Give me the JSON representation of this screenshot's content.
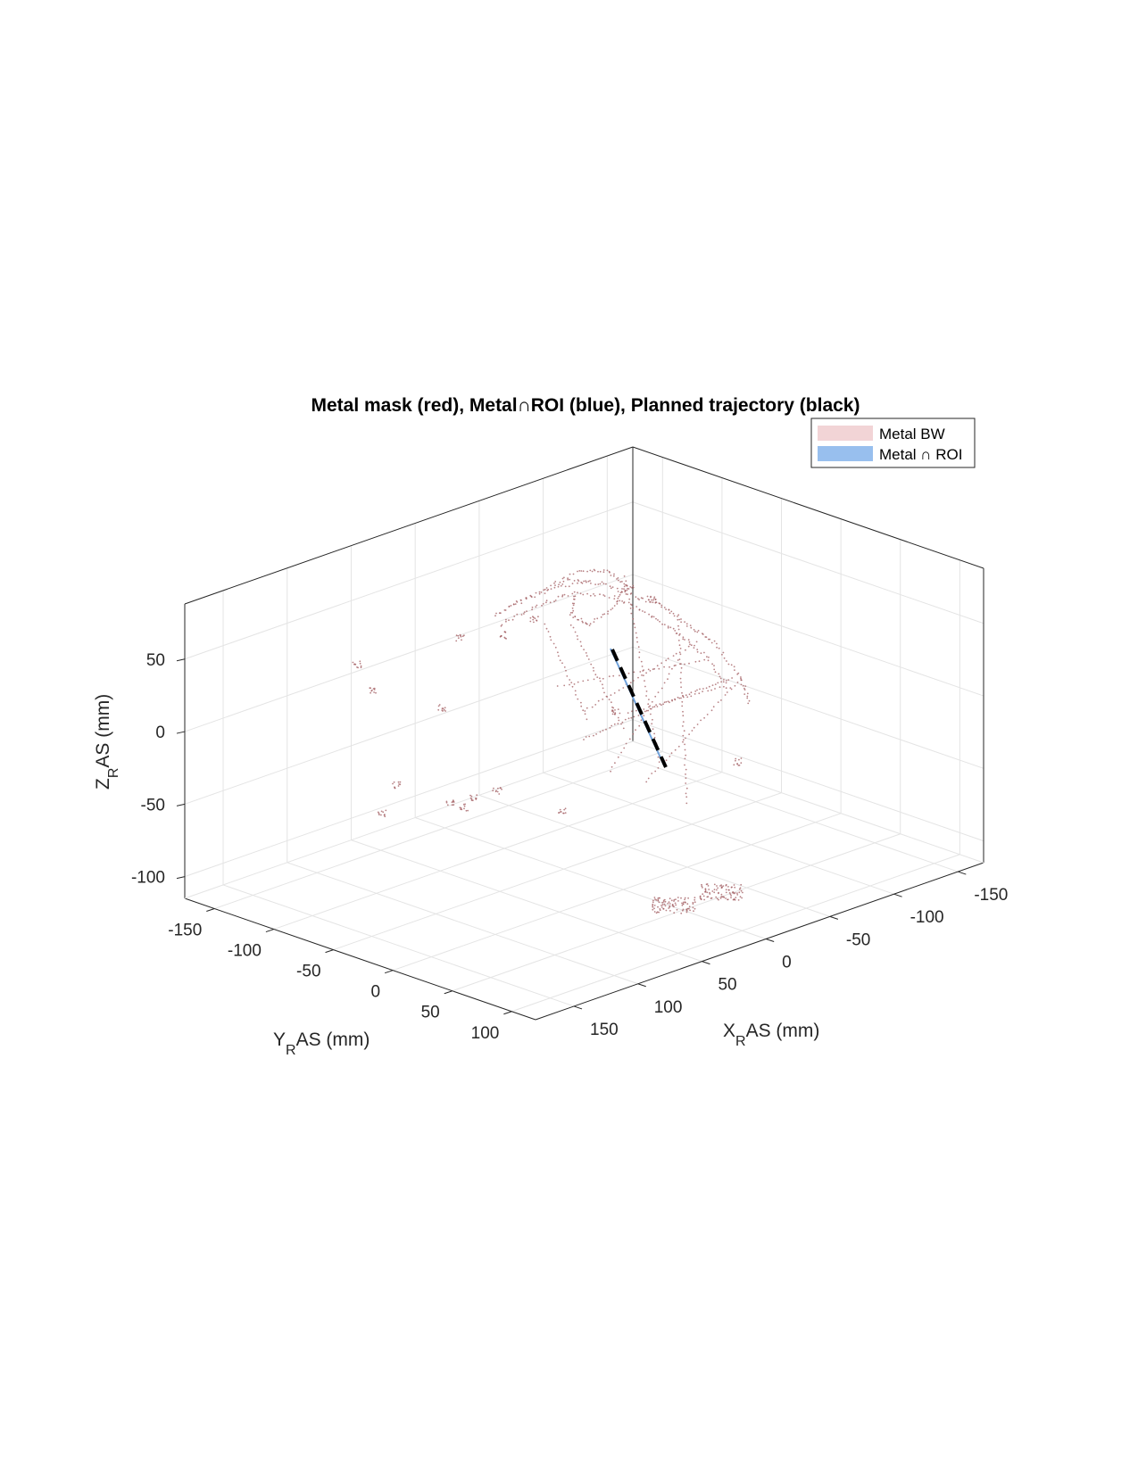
{
  "chart_data": {
    "type": "scatter3d",
    "title": "Metal mask (red), Metal∩ROI (blue), Planned trajectory (black)",
    "axes": {
      "x": {
        "label_main": "X",
        "label_sub": "R",
        "label_rest": "AS (mm)",
        "ticks": [
          150,
          100,
          50,
          0,
          -50,
          -100,
          -150
        ],
        "lim": [
          -170,
          180
        ]
      },
      "y": {
        "label_main": "Y",
        "label_sub": "R",
        "label_rest": "AS (mm)",
        "ticks": [
          -150,
          -100,
          -50,
          0,
          50,
          100
        ],
        "lim": [
          -175,
          120
        ]
      },
      "z": {
        "label_main": "Z",
        "label_sub": "R",
        "label_rest": "AS (mm)",
        "ticks": [
          50,
          0,
          -50,
          -100
        ],
        "lim": [
          -115,
          80
        ]
      }
    },
    "grid": true,
    "legend": {
      "placement": "top-right",
      "entries": [
        {
          "label": "Metal BW",
          "color": "#f2d4d6"
        },
        {
          "label": "Metal ∩ ROI",
          "color": "#98bfee"
        }
      ]
    },
    "series": [
      {
        "name": "Metal BW",
        "color": "#a05a5e",
        "kind": "point-cloud",
        "description_only": false
      },
      {
        "name": "Metal ∩ ROI",
        "color": "#6fa2dc",
        "kind": "point-cloud"
      },
      {
        "name": "Planned trajectory",
        "color": "#000000",
        "kind": "dashed-line"
      }
    ]
  }
}
